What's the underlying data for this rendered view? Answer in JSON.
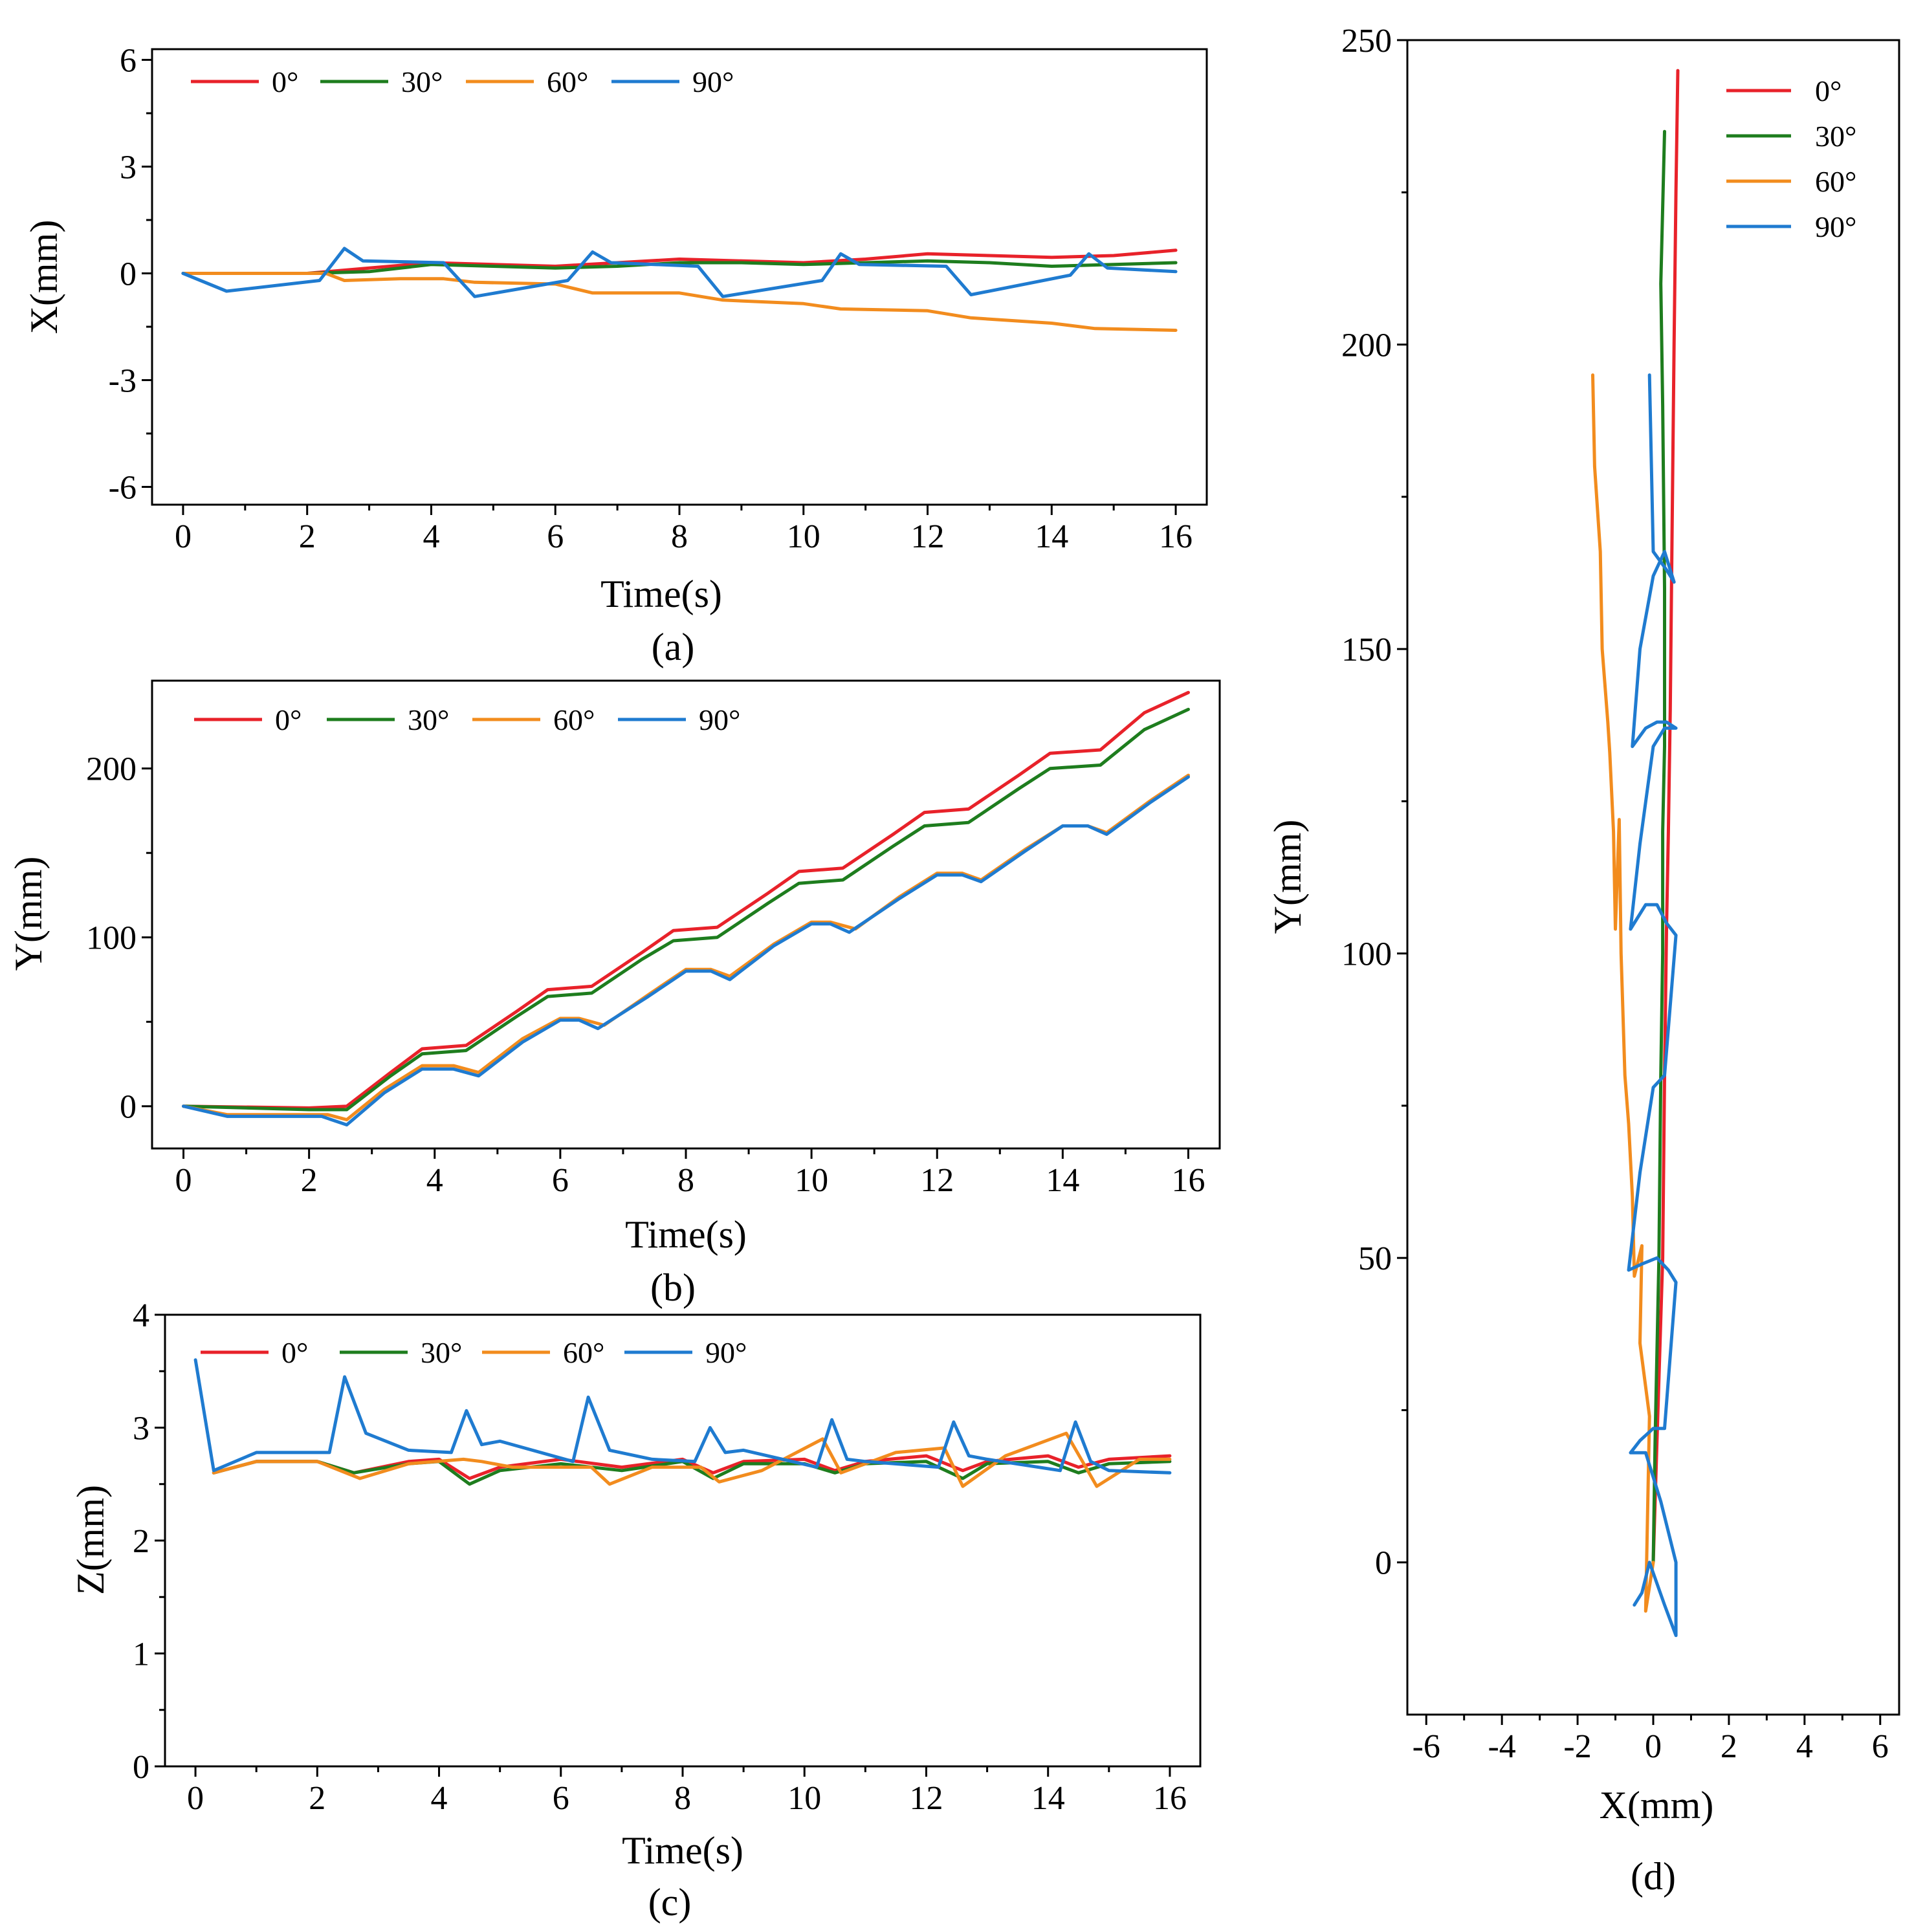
{
  "chart_data": [
    {
      "id": "a",
      "type": "line",
      "panel_label": "(a)",
      "xlabel": "Time(s)",
      "ylabel": "X(mm)",
      "xlim": [
        -0.5,
        16.5
      ],
      "ylim": [
        -6.5,
        6.3
      ],
      "xticks": [
        0,
        2,
        4,
        6,
        8,
        10,
        12,
        14,
        16
      ],
      "yticks": [
        -6,
        -3,
        0,
        3,
        6
      ],
      "ytick_labels": [
        "-6",
        "-3",
        "0",
        "3",
        "6"
      ],
      "legend": "top-left-row",
      "series": [
        {
          "name": "0°",
          "color": "#e8222a",
          "x": [
            0,
            2,
            4,
            6,
            8,
            10,
            11,
            12,
            13,
            14,
            15,
            16
          ],
          "y": [
            0,
            0,
            0.3,
            0.2,
            0.4,
            0.3,
            0.4,
            0.55,
            0.5,
            0.45,
            0.5,
            0.65
          ]
        },
        {
          "name": "30°",
          "color": "#1e7d1e",
          "x": [
            0,
            2,
            3,
            4,
            5,
            6,
            7,
            8,
            9,
            10,
            11,
            12,
            13,
            14,
            15,
            16
          ],
          "y": [
            0,
            0,
            0.05,
            0.25,
            0.2,
            0.15,
            0.2,
            0.3,
            0.3,
            0.25,
            0.3,
            0.35,
            0.3,
            0.2,
            0.25,
            0.3
          ]
        },
        {
          "name": "60°",
          "color": "#f28c1e",
          "x": [
            0,
            2.3,
            2.6,
            3.5,
            4.2,
            4.7,
            6,
            6.6,
            8,
            8.7,
            10,
            10.6,
            12,
            12.7,
            14,
            14.7,
            16
          ],
          "y": [
            0,
            0,
            -0.2,
            -0.15,
            -0.15,
            -0.25,
            -0.3,
            -0.55,
            -0.55,
            -0.75,
            -0.85,
            -1.0,
            -1.05,
            -1.25,
            -1.4,
            -1.55,
            -1.6
          ]
        },
        {
          "name": "90°",
          "color": "#1f7bd0",
          "x": [
            0,
            0.7,
            2.2,
            2.6,
            2.9,
            4.2,
            4.7,
            6.2,
            6.6,
            6.9,
            8.3,
            8.7,
            10.3,
            10.6,
            10.9,
            12.3,
            12.7,
            14.3,
            14.6,
            14.9,
            16
          ],
          "y": [
            0,
            -0.5,
            -0.2,
            0.7,
            0.35,
            0.3,
            -0.65,
            -0.2,
            0.6,
            0.3,
            0.2,
            -0.65,
            -0.2,
            0.55,
            0.25,
            0.2,
            -0.6,
            -0.05,
            0.55,
            0.15,
            0.05
          ]
        }
      ]
    },
    {
      "id": "b",
      "type": "line",
      "panel_label": "(b)",
      "xlabel": "Time(s)",
      "ylabel": "Y(mm)",
      "xlim": [
        -0.5,
        16.5
      ],
      "ylim": [
        -25,
        252
      ],
      "xticks": [
        0,
        2,
        4,
        6,
        8,
        10,
        12,
        14,
        16
      ],
      "yticks": [
        0,
        100,
        200
      ],
      "ytick_labels": [
        "0",
        "100",
        "200"
      ],
      "legend": "top-left-row",
      "series": [
        {
          "name": "0°",
          "color": "#e8222a",
          "x": [
            0,
            2,
            2.6,
            3.3,
            3.8,
            4.5,
            5.3,
            5.8,
            6.5,
            7.3,
            7.8,
            8.5,
            9.3,
            9.8,
            10.5,
            11.3,
            11.8,
            12.5,
            13.3,
            13.8,
            14.6,
            15.3,
            16
          ],
          "y": [
            0,
            -1,
            0,
            20,
            34,
            36,
            56,
            69,
            71,
            91,
            104,
            106,
            126,
            139,
            141,
            161,
            174,
            176,
            196,
            209,
            211,
            233,
            245
          ]
        },
        {
          "name": "30°",
          "color": "#1e7d1e",
          "x": [
            0,
            2,
            2.6,
            3.3,
            3.8,
            4.5,
            5.3,
            5.8,
            6.5,
            7.3,
            7.8,
            8.5,
            9.3,
            9.8,
            10.5,
            11.3,
            11.8,
            12.5,
            13.3,
            13.8,
            14.6,
            15.3,
            16
          ],
          "y": [
            0,
            -2,
            -2,
            18,
            31,
            33,
            53,
            65,
            67,
            87,
            98,
            100,
            120,
            132,
            134,
            154,
            166,
            168,
            188,
            200,
            202,
            223,
            235
          ]
        },
        {
          "name": "60°",
          "color": "#f28c1e",
          "x": [
            0,
            0.7,
            2.3,
            2.6,
            3.2,
            3.8,
            4.3,
            4.7,
            5.4,
            6,
            6.3,
            6.7,
            7.4,
            8,
            8.4,
            8.7,
            9.4,
            10,
            10.3,
            10.7,
            11.4,
            12,
            12.4,
            12.7,
            13.4,
            14,
            14.4,
            14.7,
            15.4,
            16
          ],
          "y": [
            0,
            -5,
            -5,
            -8,
            10,
            24,
            24,
            20,
            40,
            52,
            52,
            48,
            66,
            81,
            81,
            77,
            96,
            109,
            109,
            105,
            124,
            138,
            138,
            134,
            152,
            166,
            166,
            162,
            181,
            196
          ]
        },
        {
          "name": "90°",
          "color": "#1f7bd0",
          "x": [
            0,
            0.7,
            2.2,
            2.6,
            3.2,
            3.8,
            4.3,
            4.7,
            5.4,
            6,
            6.3,
            6.6,
            7.4,
            8,
            8.4,
            8.7,
            9.4,
            10,
            10.3,
            10.6,
            11.4,
            12,
            12.4,
            12.7,
            13.4,
            14,
            14.4,
            14.7,
            15.4,
            16
          ],
          "y": [
            0,
            -6,
            -6,
            -11,
            8,
            22,
            22,
            18,
            38,
            51,
            51,
            46,
            65,
            80,
            80,
            75,
            95,
            108,
            108,
            103,
            123,
            137,
            137,
            133,
            151,
            166,
            166,
            161,
            180,
            195
          ]
        }
      ]
    },
    {
      "id": "c",
      "type": "line",
      "panel_label": "(c)",
      "xlabel": "Time(s)",
      "ylabel": "Z(mm)",
      "xlim": [
        -0.5,
        16.5
      ],
      "ylim": [
        0,
        4
      ],
      "xticks": [
        0,
        2,
        4,
        6,
        8,
        10,
        12,
        14,
        16
      ],
      "yticks": [
        0,
        1,
        2,
        3,
        4
      ],
      "ytick_labels": [
        "0",
        "1",
        "2",
        "3",
        "4"
      ],
      "legend": "top-left-row",
      "series": [
        {
          "name": "0°",
          "color": "#e8222a",
          "x": [
            0.3,
            1,
            2,
            2.6,
            3.5,
            4,
            4.5,
            5,
            6,
            7,
            8,
            8.5,
            9,
            10,
            10.5,
            11,
            12,
            12.6,
            13,
            14,
            14.5,
            15,
            16
          ],
          "y": [
            2.6,
            2.7,
            2.7,
            2.6,
            2.7,
            2.72,
            2.55,
            2.65,
            2.72,
            2.65,
            2.72,
            2.6,
            2.7,
            2.72,
            2.62,
            2.7,
            2.75,
            2.62,
            2.7,
            2.75,
            2.65,
            2.72,
            2.75
          ]
        },
        {
          "name": "30°",
          "color": "#1e7d1e",
          "x": [
            0.3,
            1,
            2,
            2.6,
            3.5,
            4,
            4.5,
            5,
            6,
            7,
            8,
            8.5,
            9,
            10,
            10.5,
            11,
            12,
            12.6,
            13,
            14,
            14.5,
            15,
            16
          ],
          "y": [
            2.6,
            2.7,
            2.7,
            2.6,
            2.68,
            2.7,
            2.5,
            2.62,
            2.68,
            2.62,
            2.7,
            2.55,
            2.68,
            2.68,
            2.6,
            2.68,
            2.7,
            2.55,
            2.68,
            2.7,
            2.6,
            2.68,
            2.7
          ]
        },
        {
          "name": "60°",
          "color": "#f28c1e",
          "x": [
            0.3,
            1,
            2,
            2.7,
            3.5,
            4.4,
            4.7,
            5.2,
            6.5,
            6.8,
            7.5,
            8.3,
            8.6,
            9.3,
            10.3,
            10.6,
            11.5,
            12.3,
            12.6,
            13.3,
            14.3,
            14.8,
            15.5,
            16
          ],
          "y": [
            2.6,
            2.7,
            2.7,
            2.55,
            2.68,
            2.72,
            2.7,
            2.65,
            2.65,
            2.5,
            2.65,
            2.65,
            2.52,
            2.62,
            2.9,
            2.6,
            2.78,
            2.82,
            2.48,
            2.75,
            2.95,
            2.48,
            2.72,
            2.72
          ]
        },
        {
          "name": "90°",
          "color": "#1f7bd0",
          "x": [
            0,
            0.3,
            1,
            2.2,
            2.45,
            2.8,
            3.5,
            4.2,
            4.45,
            4.7,
            5,
            6.2,
            6.45,
            6.8,
            7.5,
            8.2,
            8.45,
            8.7,
            9,
            10.2,
            10.45,
            10.7,
            11,
            12.2,
            12.45,
            12.7,
            13,
            14.2,
            14.45,
            14.7,
            15,
            16
          ],
          "y": [
            3.6,
            2.62,
            2.78,
            2.78,
            3.45,
            2.95,
            2.8,
            2.78,
            3.15,
            2.85,
            2.88,
            2.7,
            3.27,
            2.8,
            2.72,
            2.7,
            3.0,
            2.78,
            2.8,
            2.65,
            3.07,
            2.72,
            2.7,
            2.65,
            3.05,
            2.75,
            2.72,
            2.62,
            3.05,
            2.7,
            2.62,
            2.6
          ]
        }
      ]
    },
    {
      "id": "d",
      "type": "line",
      "panel_label": "(d)",
      "xlabel": "X(mm)",
      "ylabel": "Y(mm)",
      "xlim": [
        -6.5,
        6.5
      ],
      "ylim": [
        -25,
        250
      ],
      "xticks": [
        -6,
        -4,
        -2,
        0,
        2,
        4,
        6
      ],
      "yticks": [
        0,
        50,
        100,
        150,
        200,
        250
      ],
      "ytick_labels": [
        "0",
        "50",
        "100",
        "150",
        "200",
        "250"
      ],
      "legend": "top-right-column",
      "series": [
        {
          "name": "0°",
          "color": "#e8222a",
          "x": [
            0,
            0.1,
            0.25,
            0.3,
            0.35,
            0.4,
            0.45,
            0.5,
            0.55,
            0.6,
            0.65
          ],
          "y": [
            0,
            20,
            50,
            80,
            104,
            120,
            140,
            170,
            200,
            225,
            245
          ]
        },
        {
          "name": "30°",
          "color": "#1e7d1e",
          "x": [
            0,
            0.05,
            0.15,
            0.2,
            0.25,
            0.25,
            0.3,
            0.3,
            0.25,
            0.2,
            0.3
          ],
          "y": [
            0,
            20,
            50,
            80,
            100,
            120,
            134,
            160,
            190,
            210,
            235
          ]
        },
        {
          "name": "60°",
          "color": "#f28c1e",
          "x": [
            0,
            -0.2,
            -0.1,
            -0.35,
            -0.3,
            -0.5,
            -0.55,
            -0.65,
            -0.75,
            -0.85,
            -0.9,
            -1.0,
            -1.05,
            -1.15,
            -1.2,
            -1.35,
            -1.4,
            -1.55,
            -1.6
          ],
          "y": [
            0,
            -8,
            24,
            36,
            52,
            47,
            60,
            72,
            80,
            100,
            122,
            104,
            120,
            133,
            138,
            150,
            166,
            180,
            195
          ]
        },
        {
          "name": "90°",
          "color": "#1f7bd0",
          "x": [
            -0.5,
            -0.3,
            -0.1,
            0.3,
            0.6,
            0.6,
            0.2,
            -0.2,
            -0.6,
            -0.35,
            0.0,
            0.3,
            0.6,
            0.4,
            0.1,
            -0.3,
            -0.65,
            -0.35,
            0.0,
            0.3,
            0.6,
            0.35,
            0.1,
            -0.2,
            -0.6,
            -0.35,
            0.0,
            0.3,
            0.6,
            0.35,
            0.1,
            -0.2,
            -0.55,
            -0.35,
            0.0,
            0.3,
            0.55,
            0.35,
            0.0,
            -0.1
          ],
          "y": [
            -7,
            -5,
            0,
            -7,
            -12,
            0,
            10,
            18,
            18,
            20,
            22,
            22,
            46,
            48,
            50,
            49,
            48,
            64,
            78,
            80,
            103,
            105,
            108,
            108,
            104,
            118,
            134,
            137,
            137,
            138,
            138,
            137,
            134,
            150,
            162,
            166,
            161,
            163,
            166,
            195
          ]
        }
      ]
    }
  ]
}
